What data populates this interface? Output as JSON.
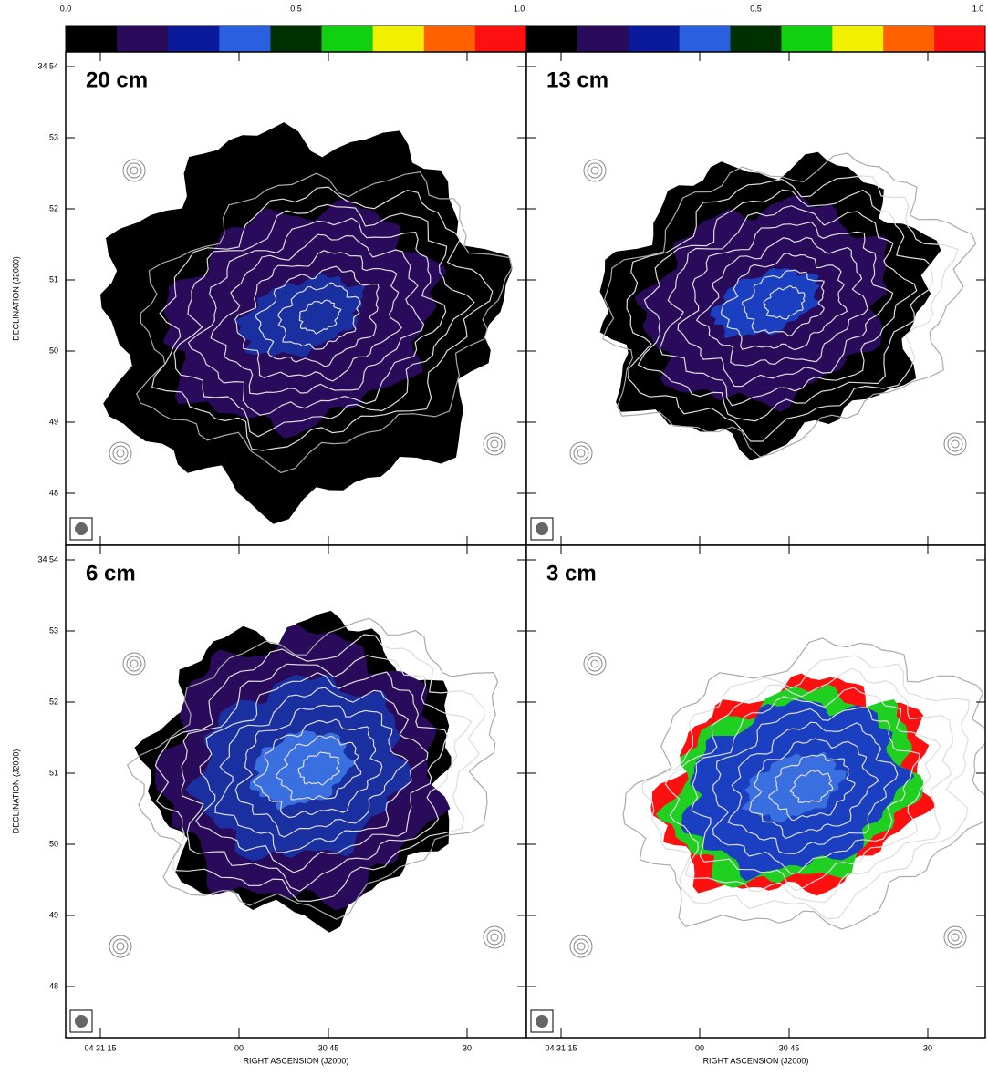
{
  "colorbars": [
    {
      "ticks": [
        "0.0",
        "0.5",
        "1.0"
      ]
    },
    {
      "ticks": [
        "0.5",
        "1.0"
      ]
    }
  ],
  "colorbar_colors": [
    "#000000",
    "#2a0a5a",
    "#0a1a9a",
    "#2a5fe0",
    "#003000",
    "#10d010",
    "#f0f000",
    "#ff6000",
    "#ff1010"
  ],
  "panels": [
    {
      "label": "20 cm"
    },
    {
      "label": "13 cm"
    },
    {
      "label": "6 cm"
    },
    {
      "label": "3 cm"
    }
  ],
  "y_axis": {
    "label": "DECLINATION (J2000)",
    "ticks": [
      "34 54",
      "53",
      "52",
      "51",
      "50",
      "49",
      "48"
    ]
  },
  "x_axis": {
    "label": "RIGHT ASCENSION (J2000)",
    "ticks": [
      "04 31 15",
      "00",
      "30 45",
      "30"
    ]
  }
}
